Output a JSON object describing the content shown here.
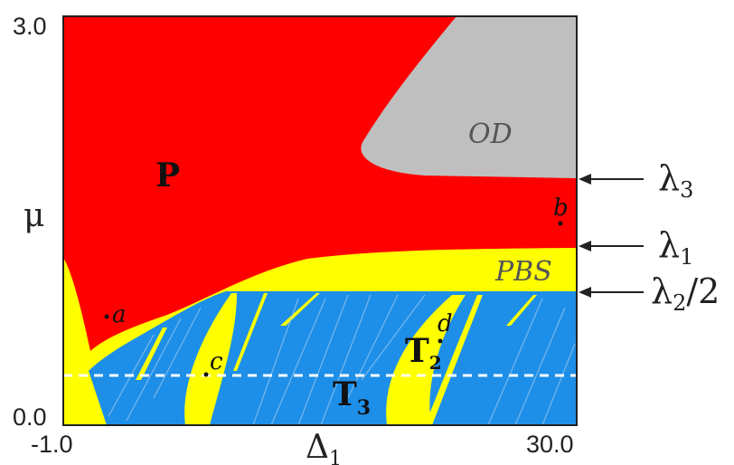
{
  "axes": {
    "x_label": "Δ",
    "x_label_sub": "1",
    "y_label": "μ",
    "x_ticks": [
      "-1.0",
      "30.0"
    ],
    "y_ticks": [
      "3.0",
      "0.0"
    ],
    "x_range": [
      -1.0,
      30.0
    ],
    "y_range": [
      0.0,
      3.0
    ]
  },
  "regions": {
    "P": "P",
    "OD": "OD",
    "PBS": "PBS",
    "T3": "T",
    "T3_sub": "3",
    "T2": "T",
    "T2_sub": "2"
  },
  "points": {
    "a": "a",
    "b": "b",
    "c": "c",
    "d": "d"
  },
  "thresholds": [
    {
      "symbol": "λ",
      "sub": "3",
      "suffix": ""
    },
    {
      "symbol": "λ",
      "sub": "1",
      "suffix": ""
    },
    {
      "symbol": "λ",
      "sub": "2",
      "suffix": "/2"
    }
  ],
  "colors": {
    "P": "#ff0000",
    "OD": "#bfbfbf",
    "PBS": "#ffff00",
    "T": "#1e8fe8",
    "dashed_line": "#ffffff"
  }
}
